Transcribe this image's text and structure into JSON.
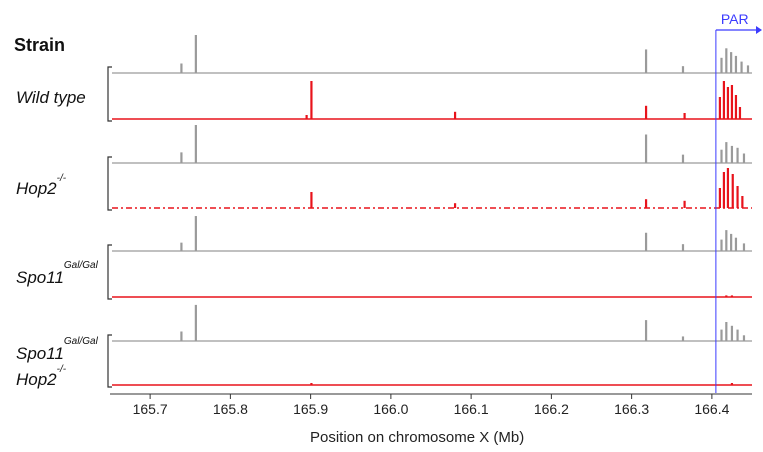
{
  "chart_data": {
    "type": "area",
    "header": "Strain",
    "xlabel": "Position on chromosome X (Mb)",
    "xlim": [
      165.65,
      166.45
    ],
    "xticks": [
      165.7,
      165.8,
      165.9,
      166.0,
      166.1,
      166.2,
      166.3,
      166.4
    ],
    "xtick_labels": [
      "165.7",
      "165.8",
      "165.9",
      "166.0",
      "166.1",
      "166.2",
      "166.3",
      "166.4"
    ],
    "region": {
      "label": "PAR",
      "start": 166.405,
      "color": "#3b3bff"
    },
    "colors": {
      "control": "#9a9a9a",
      "signal": "#e8131b",
      "axis": "#333333"
    },
    "groups": [
      {
        "label_main": "Wild type",
        "label_sup": "",
        "label_line2": "",
        "label_line2_sup": "",
        "series": [
          {
            "color_key": "control",
            "max": 1.0,
            "dashed": false,
            "peaks": [
              [
                165.739,
                0.25
              ],
              [
                165.757,
                1.0
              ],
              [
                166.318,
                0.62
              ],
              [
                166.364,
                0.18
              ],
              [
                166.412,
                0.4
              ],
              [
                166.418,
                0.65
              ],
              [
                166.424,
                0.55
              ],
              [
                166.43,
                0.45
              ],
              [
                166.437,
                0.3
              ],
              [
                166.445,
                0.2
              ]
            ]
          },
          {
            "color_key": "signal",
            "max": 1.0,
            "dashed": false,
            "peaks": [
              [
                165.901,
                0.95
              ],
              [
                165.895,
                0.1
              ],
              [
                166.08,
                0.18
              ],
              [
                166.318,
                0.33
              ],
              [
                166.366,
                0.15
              ],
              [
                166.41,
                0.55
              ],
              [
                166.415,
                0.95
              ],
              [
                166.42,
                0.8
              ],
              [
                166.425,
                0.85
              ],
              [
                166.43,
                0.6
              ],
              [
                166.435,
                0.3
              ]
            ]
          }
        ]
      },
      {
        "label_main": "Hop2",
        "label_sup": "-/-",
        "label_line2": "",
        "label_line2_sup": "",
        "series": [
          {
            "color_key": "control",
            "max": 1.0,
            "dashed": false,
            "peaks": [
              [
                165.739,
                0.28
              ],
              [
                165.757,
                1.0
              ],
              [
                166.318,
                0.75
              ],
              [
                166.364,
                0.22
              ],
              [
                166.412,
                0.35
              ],
              [
                166.418,
                0.55
              ],
              [
                166.425,
                0.45
              ],
              [
                166.432,
                0.4
              ],
              [
                166.44,
                0.25
              ]
            ]
          },
          {
            "color_key": "signal",
            "max": 1.0,
            "dashed": true,
            "peaks": [
              [
                165.901,
                0.4
              ],
              [
                166.08,
                0.12
              ],
              [
                166.318,
                0.22
              ],
              [
                166.366,
                0.18
              ],
              [
                166.41,
                0.5
              ],
              [
                166.415,
                0.9
              ],
              [
                166.42,
                1.0
              ],
              [
                166.426,
                0.85
              ],
              [
                166.432,
                0.55
              ],
              [
                166.438,
                0.3
              ]
            ]
          }
        ]
      },
      {
        "label_main": "Spo11",
        "label_sup": "Gal/Gal",
        "label_line2": "",
        "label_line2_sup": "",
        "series": [
          {
            "color_key": "control",
            "max": 1.0,
            "dashed": false,
            "peaks": [
              [
                165.739,
                0.22
              ],
              [
                165.757,
                0.92
              ],
              [
                166.318,
                0.48
              ],
              [
                166.364,
                0.18
              ],
              [
                166.412,
                0.3
              ],
              [
                166.418,
                0.55
              ],
              [
                166.424,
                0.45
              ],
              [
                166.43,
                0.35
              ],
              [
                166.44,
                0.2
              ]
            ]
          },
          {
            "color_key": "signal",
            "max": 1.0,
            "dashed": false,
            "peaks": [
              [
                166.418,
                0.04
              ],
              [
                166.425,
                0.04
              ]
            ]
          }
        ]
      },
      {
        "label_main": "Spo11",
        "label_sup": "Gal/Gal",
        "label_line2": "Hop2",
        "label_line2_sup": "-/-",
        "series": [
          {
            "color_key": "control",
            "max": 1.0,
            "dashed": false,
            "peaks": [
              [
                165.739,
                0.25
              ],
              [
                165.757,
                0.95
              ],
              [
                166.318,
                0.55
              ],
              [
                166.364,
                0.12
              ],
              [
                166.412,
                0.3
              ],
              [
                166.418,
                0.5
              ],
              [
                166.425,
                0.4
              ],
              [
                166.432,
                0.3
              ],
              [
                166.44,
                0.15
              ]
            ]
          },
          {
            "color_key": "signal",
            "max": 1.0,
            "dashed": false,
            "peaks": [
              [
                165.901,
                0.05
              ],
              [
                166.425,
                0.05
              ]
            ]
          }
        ]
      }
    ]
  }
}
